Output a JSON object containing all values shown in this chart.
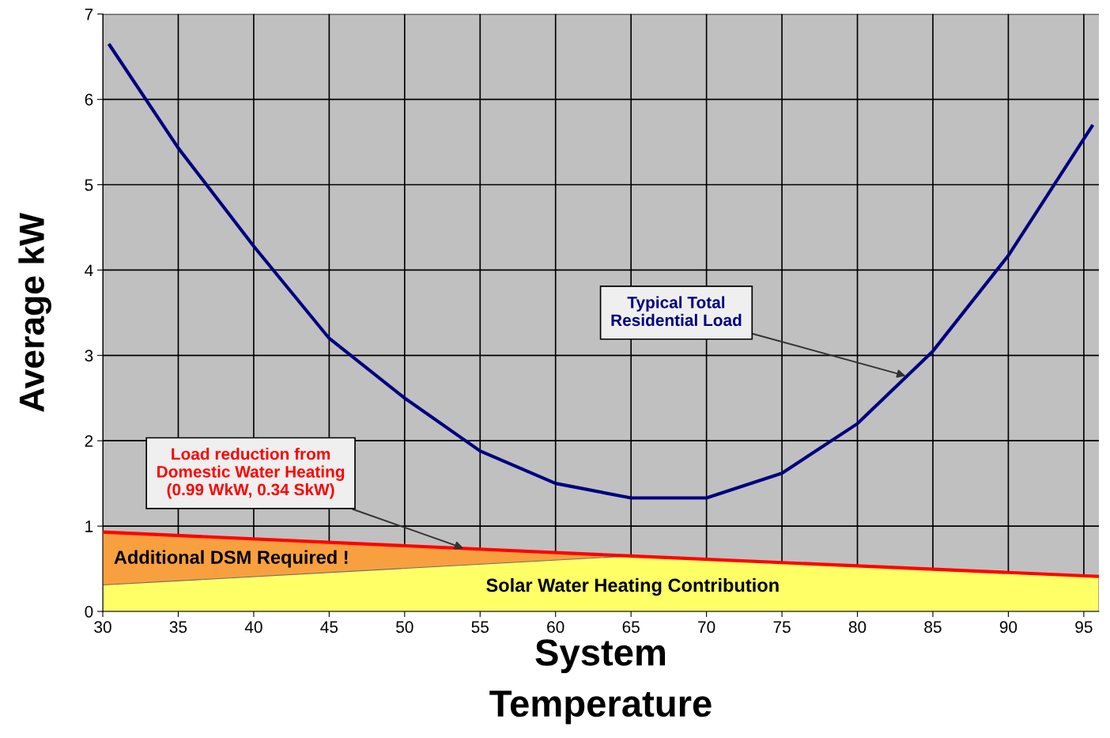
{
  "chart_data": {
    "type": "line",
    "xlabel": "System\nTemperature",
    "ylabel": "Average kW",
    "xlim": [
      30,
      96
    ],
    "xticks": [
      30,
      35,
      40,
      45,
      50,
      55,
      60,
      65,
      70,
      75,
      80,
      85,
      90,
      95
    ],
    "ylim": [
      0,
      7
    ],
    "yticks": [
      0,
      1,
      2,
      3,
      4,
      5,
      6,
      7
    ],
    "grid": true,
    "series": [
      {
        "type": "area",
        "color": "#f8a040",
        "x": [
          30,
          65
        ],
        "values": [
          0.93,
          0.65
        ]
      },
      {
        "type": "area",
        "color": "#ffff66",
        "x": [
          30,
          65,
          96
        ],
        "values": [
          0.31,
          0.65,
          0.41
        ]
      },
      {
        "type": "line",
        "color": "#ff0000",
        "x": [
          30,
          65,
          96
        ],
        "values": [
          0.93,
          0.65,
          0.41
        ]
      },
      {
        "color": "#000080",
        "x": [
          30.4,
          35,
          40,
          45,
          50,
          55,
          60,
          65,
          70,
          75,
          80,
          85,
          90,
          95.6
        ],
        "values": [
          6.65,
          5.43,
          4.28,
          3.2,
          2.5,
          1.88,
          1.5,
          1.33,
          1.33,
          1.62,
          2.2,
          3.05,
          4.17,
          5.7
        ]
      }
    ],
    "annotations": [
      {
        "text": "Typical Total\nResidential Load",
        "x": 83.2,
        "y": 2.76
      },
      {
        "text": "Load reduction from\nDomestic Water Heating\n(0.99 WkW, 0.34 SkW)",
        "x": 53.9,
        "y": 0.74
      },
      "Additional DSM Required !",
      "Solar Water Heating Contribution"
    ]
  }
}
